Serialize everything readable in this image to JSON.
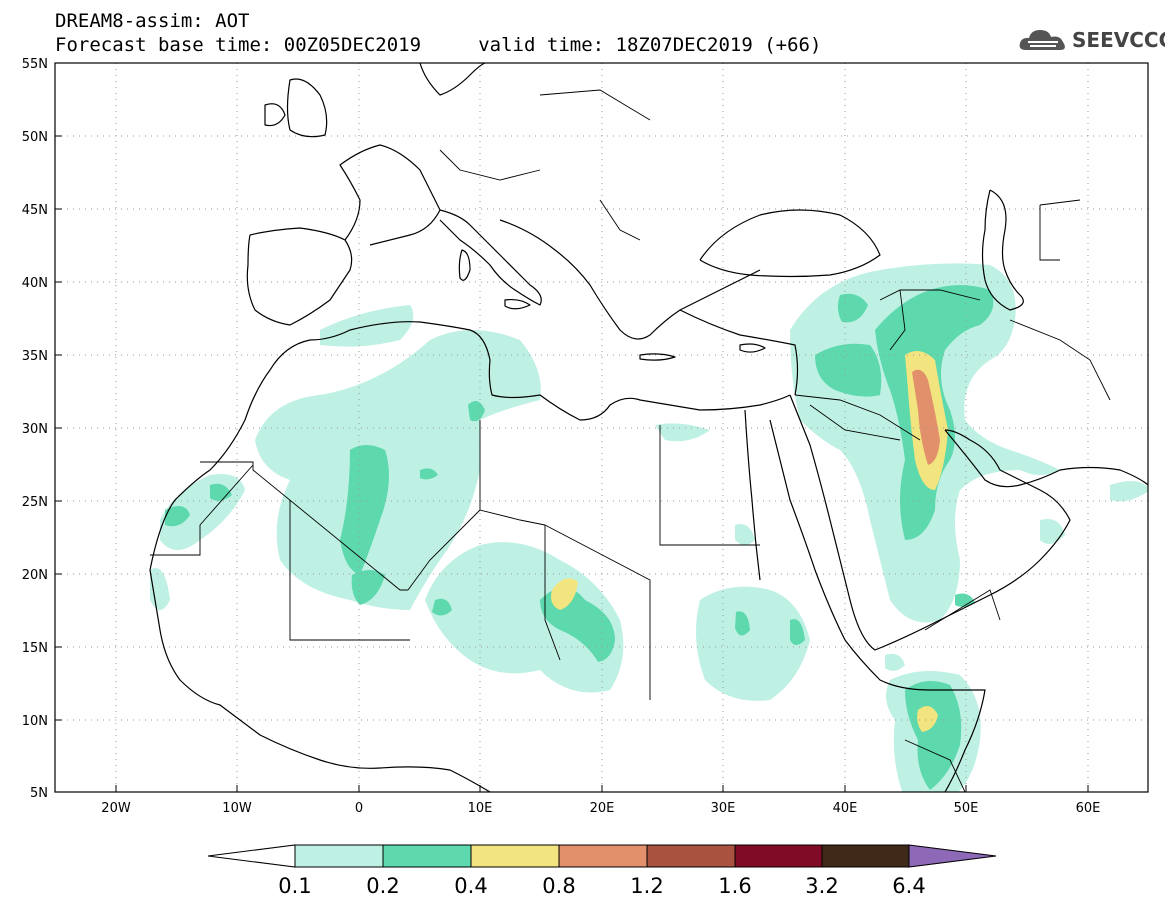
{
  "header": {
    "title_line1": "DREAM8-assim: AOT",
    "title_line2": "Forecast base time: 00Z05DEC2019     valid time: 18Z07DEC2019 (+66)"
  },
  "logo": {
    "text": "SEEVCCC",
    "icon": "cloud-logo-icon"
  },
  "map": {
    "lat_ticks": [
      "55N",
      "50N",
      "45N",
      "40N",
      "35N",
      "30N",
      "25N",
      "20N",
      "15N",
      "10N",
      "5N"
    ],
    "lon_ticks": [
      "20W",
      "10W",
      "0",
      "10E",
      "20E",
      "30E",
      "40E",
      "50E",
      "60E"
    ],
    "extent": {
      "lon_min": -25,
      "lon_max": 65,
      "lat_min": 5,
      "lat_max": 55
    }
  },
  "colorbar": {
    "labels": [
      "0.1",
      "0.2",
      "0.4",
      "0.8",
      "1.2",
      "1.6",
      "3.2",
      "6.4"
    ],
    "colors": [
      "#ffffff",
      "#bff0e4",
      "#5dd9ad",
      "#f2e47e",
      "#e2906b",
      "#a9523f",
      "#7f0b27",
      "#3f2a17",
      "#8e69b7"
    ]
  }
}
